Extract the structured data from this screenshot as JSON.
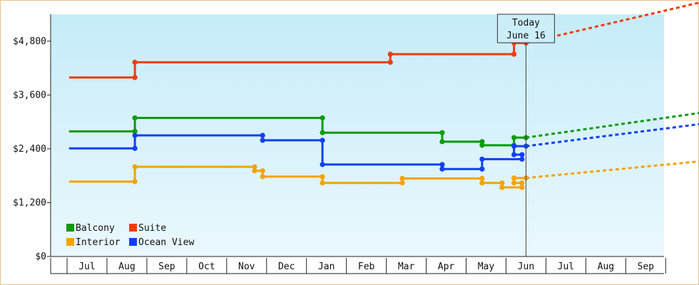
{
  "chart_data": {
    "type": "line",
    "step": true,
    "y_label_prefix": "$",
    "ylim": [
      0,
      5400
    ],
    "yticks": [
      0,
      1200,
      2400,
      3600,
      4800
    ],
    "ytick_labels": [
      "$0",
      "$1,200",
      "$2,400",
      "$3,600",
      "$4,800"
    ],
    "xlim": [
      -0.45,
      15.35
    ],
    "month_labels": [
      "Jul",
      "Aug",
      "Sep",
      "Oct",
      "Nov",
      "Dec",
      "Jan",
      "Feb",
      "Mar",
      "Apr",
      "May",
      "Jun",
      "Jul",
      "Aug",
      "Sep"
    ],
    "today": {
      "line1": "Today",
      "line2": "June 16",
      "x": 11.0
    },
    "legend_layout": "bottom-left, 2 columns",
    "series": [
      {
        "name": "Balcony",
        "color": "#0f9a0f",
        "points": [
          [
            -0.45,
            2790
          ],
          [
            1.2,
            2790
          ],
          [
            1.2,
            3090
          ],
          [
            5.9,
            3090
          ],
          [
            5.9,
            2760
          ],
          [
            8.9,
            2760
          ],
          [
            8.9,
            2560
          ],
          [
            9.9,
            2560
          ],
          [
            9.9,
            2480
          ],
          [
            10.7,
            2480
          ],
          [
            10.7,
            2650
          ],
          [
            11.0,
            2650
          ]
        ],
        "forecast": [
          [
            11.0,
            2650
          ],
          [
            15.35,
            3200
          ]
        ]
      },
      {
        "name": "Suite",
        "color": "#f03c0a",
        "points": [
          [
            -0.45,
            3990
          ],
          [
            1.2,
            3990
          ],
          [
            1.2,
            4330
          ],
          [
            7.6,
            4330
          ],
          [
            7.6,
            4510
          ],
          [
            10.7,
            4510
          ],
          [
            10.7,
            4760
          ],
          [
            11.0,
            4760
          ]
        ],
        "forecast": [
          [
            11.0,
            4760
          ],
          [
            15.35,
            5660
          ]
        ]
      },
      {
        "name": "Interior",
        "color": "#f5a300",
        "points": [
          [
            -0.45,
            1670
          ],
          [
            1.2,
            1670
          ],
          [
            1.2,
            2000
          ],
          [
            4.2,
            2000
          ],
          [
            4.2,
            1910
          ],
          [
            4.4,
            1910
          ],
          [
            4.4,
            1780
          ],
          [
            5.9,
            1780
          ],
          [
            5.9,
            1640
          ],
          [
            7.9,
            1640
          ],
          [
            7.9,
            1740
          ],
          [
            9.9,
            1740
          ],
          [
            9.9,
            1640
          ],
          [
            10.4,
            1640
          ],
          [
            10.4,
            1540
          ],
          [
            10.9,
            1540
          ],
          [
            10.9,
            1640
          ],
          [
            10.7,
            1640
          ],
          [
            10.7,
            1750
          ],
          [
            11.0,
            1750
          ]
        ],
        "forecast": [
          [
            11.0,
            1750
          ],
          [
            15.35,
            2120
          ]
        ]
      },
      {
        "name": "Ocean View",
        "color": "#1040f0",
        "points": [
          [
            -0.45,
            2410
          ],
          [
            1.2,
            2410
          ],
          [
            1.2,
            2700
          ],
          [
            4.4,
            2700
          ],
          [
            4.4,
            2590
          ],
          [
            5.9,
            2590
          ],
          [
            5.9,
            2050
          ],
          [
            8.9,
            2050
          ],
          [
            8.9,
            1950
          ],
          [
            9.9,
            1950
          ],
          [
            9.9,
            2170
          ],
          [
            10.9,
            2170
          ],
          [
            10.9,
            2270
          ],
          [
            10.7,
            2270
          ],
          [
            10.7,
            2460
          ],
          [
            11.0,
            2460
          ]
        ],
        "forecast": [
          [
            11.0,
            2460
          ],
          [
            15.35,
            2950
          ]
        ]
      }
    ]
  }
}
